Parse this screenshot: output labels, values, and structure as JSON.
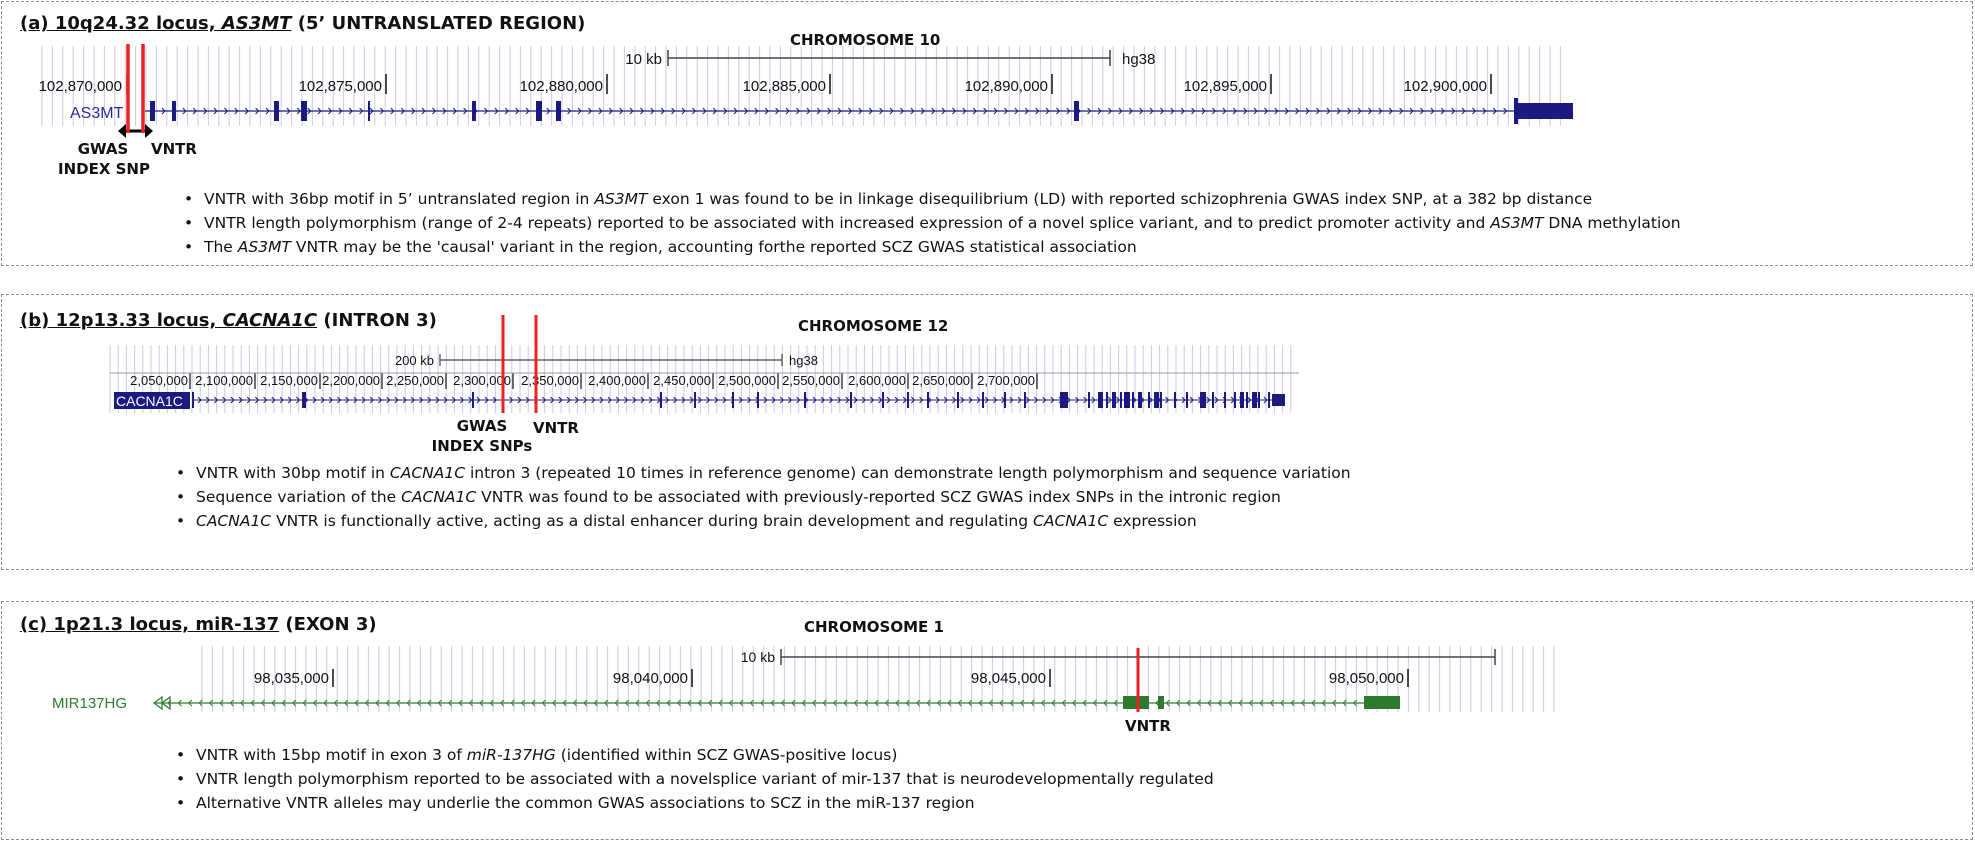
{
  "panels": [
    {
      "title_prefix": "(a) 10q24.32 locus, ",
      "gene_italic": "AS3MT",
      "title_suffix": " (5’ UNTRANSLATED REGION)",
      "chromosome": "CHROMOSOME 10",
      "scale_label": "10 kb",
      "assembly": "hg38",
      "ticks": [
        "102,870,000",
        "102,875,000",
        "102,880,000",
        "102,885,000",
        "102,890,000",
        "102,895,000",
        "102,900,000"
      ],
      "gene_track": "AS3MT",
      "labels": {
        "gwas_line1": "GWAS",
        "gwas_line2": "INDEX SNP",
        "vntr": "VNTR"
      },
      "bullets": [
        [
          {
            "t": "VNTR with 36bp motif in 5’ untranslated region in "
          },
          {
            "t": "AS3MT",
            "i": true
          },
          {
            "t": " exon 1 was found to be in linkage disequilibrium (LD)  with reported schizophrenia GWAS index SNP, at a 382 bp distance"
          }
        ],
        [
          {
            "t": "VNTR length polymorphism (range of 2-4 repeats) reported to be associated with increased expression of a novel splice variant, and to predict promoter activity and "
          },
          {
            "t": "AS3MT",
            "i": true
          },
          {
            "t": " DNA methylation"
          }
        ],
        [
          {
            "t": "The "
          },
          {
            "t": "AS3MT",
            "i": true
          },
          {
            "t": " VNTR may be the 'causal' variant in the region, accounting forthe reported SCZ GWAS statistical association"
          }
        ]
      ]
    },
    {
      "title_prefix": "(b) 12p13.33 locus, ",
      "gene_italic": "CACNA1C",
      "title_suffix": " (INTRON 3)",
      "chromosome": "CHROMOSOME 12",
      "scale_label": "200 kb",
      "assembly": "hg38",
      "ticks": [
        "2,050,000",
        "2,100,000",
        "2,150,000",
        "2,200,000",
        "2,250,000",
        "2,300,000",
        "2,350,000",
        "2,400,000",
        "2,450,000",
        "2,500,000",
        "2,550,000",
        "2,600,000",
        "2,650,000",
        "2,700,000"
      ],
      "gene_track": "CACNA1C",
      "labels": {
        "gwas_line1": "GWAS",
        "gwas_line2": "INDEX SNPs",
        "vntr": "VNTR"
      },
      "bullets": [
        [
          {
            "t": "VNTR with 30bp motif in "
          },
          {
            "t": "CACNA1C",
            "i": true
          },
          {
            "t": " intron 3 (repeated 10 times in reference genome) can demonstrate length polymorphism and sequence variation"
          }
        ],
        [
          {
            "t": "Sequence variation of the "
          },
          {
            "t": "CACNA1C",
            "i": true
          },
          {
            "t": " VNTR was found to be associated with previously-reported SCZ GWAS index SNPs in the intronic region"
          }
        ],
        [
          {
            "t": "CACNA1C",
            "i": true
          },
          {
            "t": " VNTR is functionally active, acting as a distal enhancer during brain development and regulating "
          },
          {
            "t": "CACNA1C",
            "i": true
          },
          {
            "t": " expression"
          }
        ]
      ]
    },
    {
      "title_prefix": "(c) 1p21.3 locus, miR-137",
      "gene_italic": "",
      "title_suffix": " (EXON 3)",
      "chromosome": "CHROMOSOME 1",
      "scale_label": "10 kb",
      "assembly": "",
      "ticks": [
        "98,035,000",
        "98,040,000",
        "98,045,000",
        "98,050,000"
      ],
      "gene_track": "MIR137HG",
      "labels": {
        "vntr": "VNTR"
      },
      "bullets": [
        [
          {
            "t": "VNTR with 15bp motif in exon 3 of "
          },
          {
            "t": "miR-137HG",
            "i": true
          },
          {
            "t": " (identified within SCZ GWAS-positive locus)"
          }
        ],
        [
          {
            "t": "VNTR length polymorphism reported to be associated with a novelsplice variant of mir-137 that is neurodevelopmentally regulated"
          }
        ],
        [
          {
            "t": "Alternative VNTR alleles may underlie the common GWAS associations to SCZ in the miR-137 region"
          }
        ]
      ]
    }
  ],
  "colors": {
    "gene_track_navy": "#1a1a80",
    "gene_track_green": "#2f7a2f",
    "variant_marker_red": "#ee2222",
    "grid_lines": "#c9cbe8",
    "border": "#8a8a8a"
  }
}
